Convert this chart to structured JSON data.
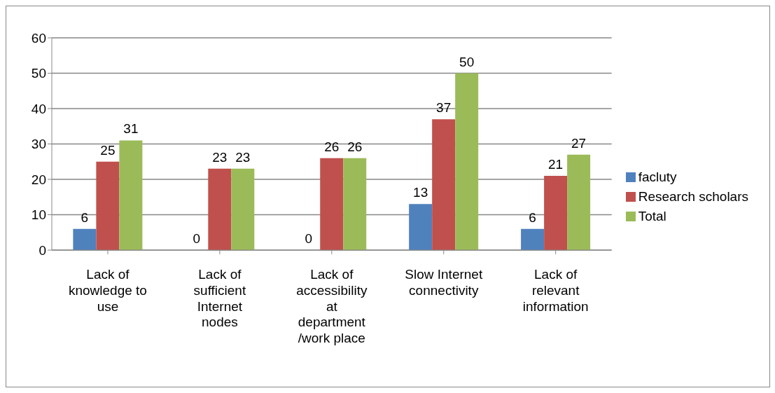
{
  "chart_data": {
    "type": "bar",
    "categories": [
      "Lack of knowledge to use",
      "Lack of sufficient Internet nodes",
      "Lack of accessibility at department /work place",
      "Slow Internet connectivity",
      "Lack of relevant information"
    ],
    "series": [
      {
        "name": "facluty",
        "color": "#4f81bd",
        "values": [
          6,
          0,
          0,
          13,
          6
        ]
      },
      {
        "name": "Research scholars",
        "color": "#c0504d",
        "values": [
          25,
          23,
          26,
          37,
          21
        ]
      },
      {
        "name": "Total",
        "color": "#9bbb59",
        "values": [
          31,
          23,
          26,
          50,
          27
        ]
      }
    ],
    "ylim": [
      0,
      60
    ],
    "yticks": [
      0,
      10,
      20,
      30,
      40,
      50,
      60
    ],
    "grid": "y",
    "legend": "right",
    "data_labels": true
  }
}
